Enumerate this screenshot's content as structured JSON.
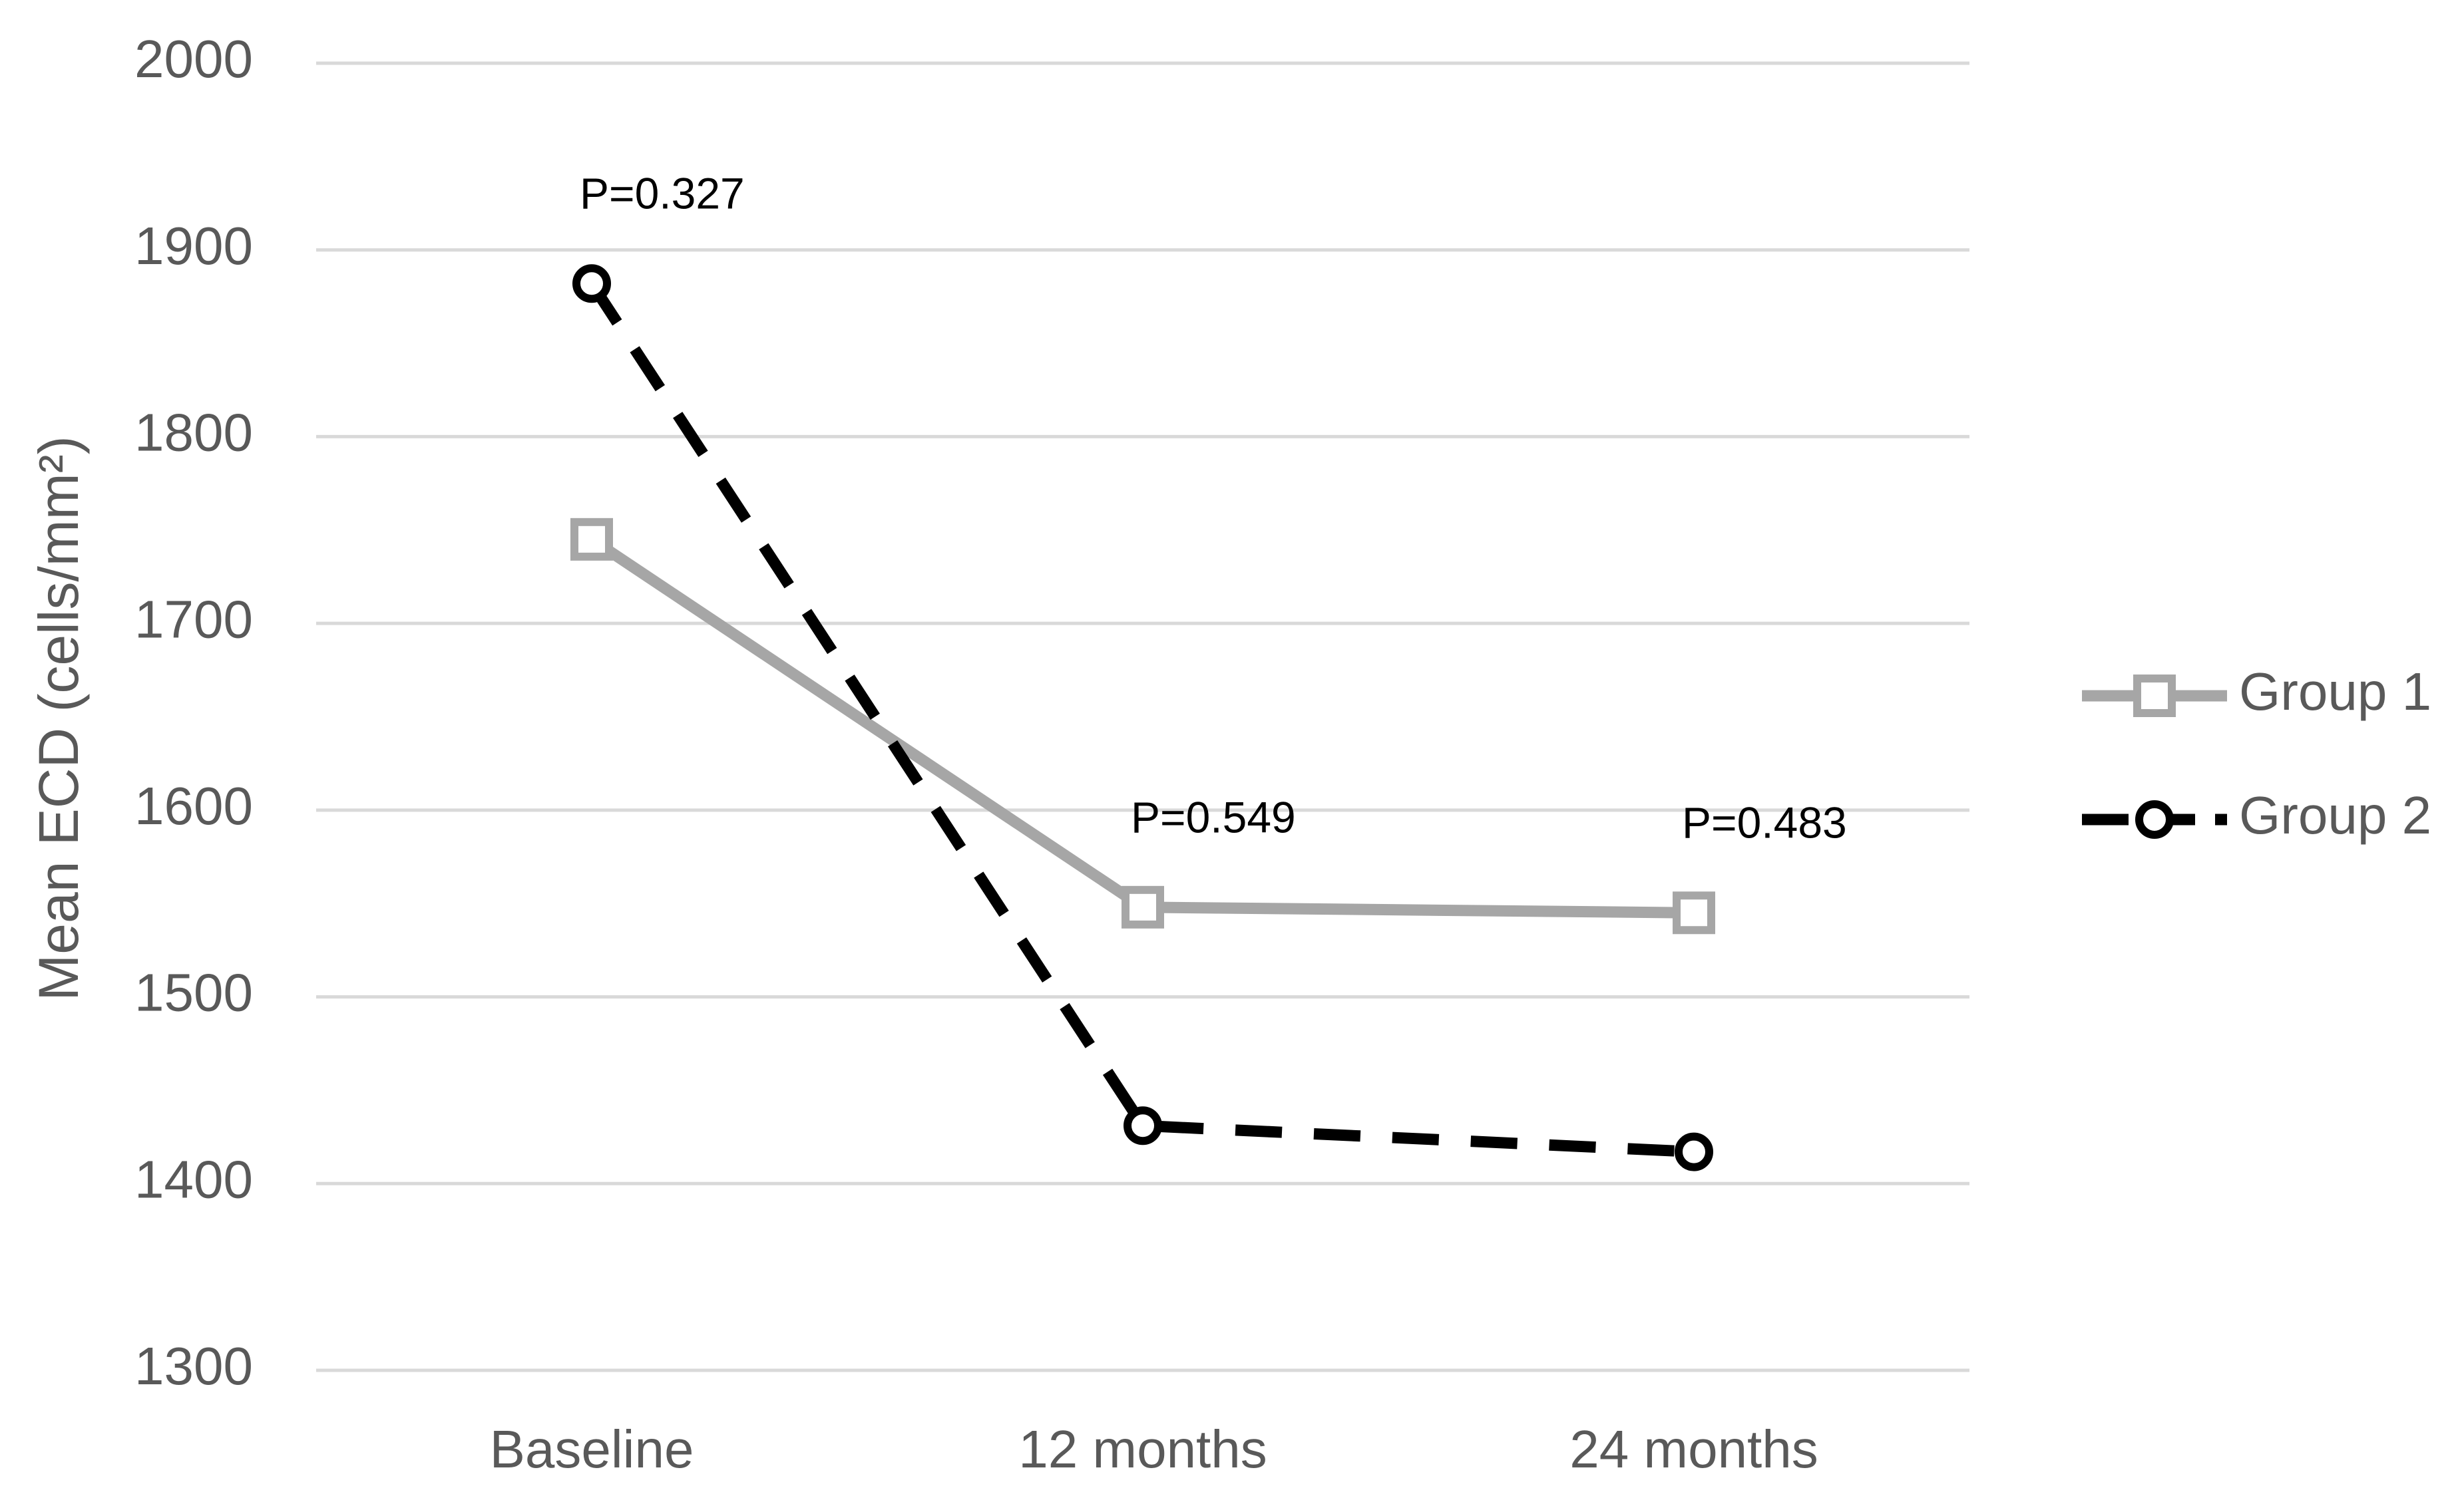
{
  "chart_data": {
    "type": "line",
    "y_label": "Mean ECD (cells/mm²)",
    "categories": [
      "Baseline",
      "12 months",
      "24 months"
    ],
    "series": [
      {
        "name": "Group 1",
        "color": "#a6a6a6",
        "marker": "square",
        "line_style": "solid",
        "values": [
          1745,
          1548,
          1545
        ]
      },
      {
        "name": "Group 2",
        "color": "#000000",
        "marker": "circle",
        "line_style": "dashed",
        "values": [
          1882,
          1431,
          1417
        ]
      }
    ],
    "annotations": [
      "P=0.327",
      "P=0.549",
      "P=0.483"
    ],
    "ylim": [
      1300,
      2000
    ],
    "yticks": [
      1300,
      1400,
      1500,
      1600,
      1700,
      1800,
      1900,
      2000
    ],
    "grid": true,
    "legend": "right"
  }
}
